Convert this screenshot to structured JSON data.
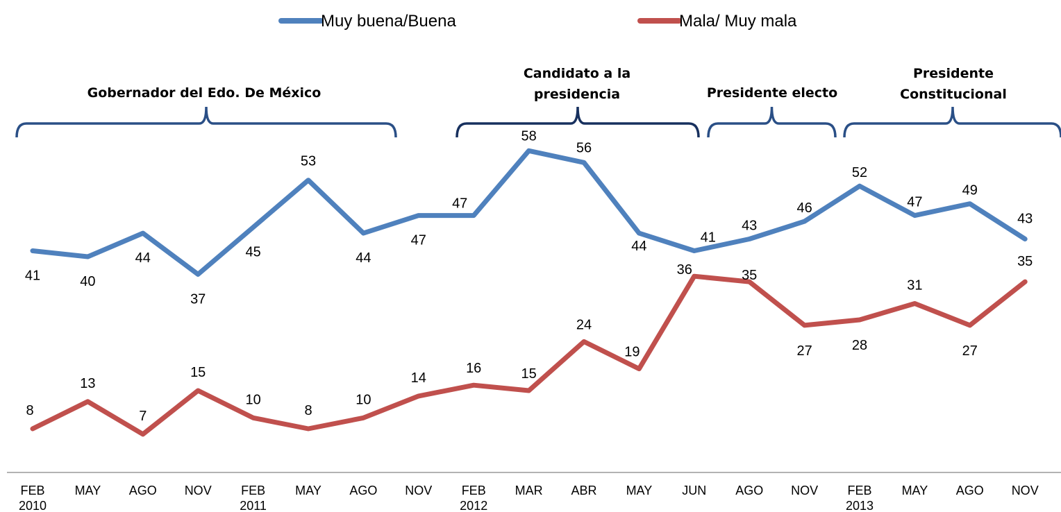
{
  "chart_data": {
    "type": "line",
    "categories": [
      [
        "FEB",
        "2010"
      ],
      [
        "MAY",
        ""
      ],
      [
        "AGO",
        ""
      ],
      [
        "NOV",
        ""
      ],
      [
        "FEB",
        "2011"
      ],
      [
        "MAY",
        ""
      ],
      [
        "AGO",
        ""
      ],
      [
        "NOV",
        ""
      ],
      [
        "FEB",
        "2012"
      ],
      [
        "MAR",
        ""
      ],
      [
        "ABR",
        ""
      ],
      [
        "MAY",
        ""
      ],
      [
        "JUN",
        ""
      ],
      [
        "AGO",
        ""
      ],
      [
        "NOV",
        ""
      ],
      [
        "FEB",
        "2013"
      ],
      [
        "MAY",
        ""
      ],
      [
        "AGO",
        ""
      ],
      [
        "NOV",
        ""
      ]
    ],
    "series": [
      {
        "name": "Muy buena/Buena",
        "color": "#4F81BD",
        "values": [
          41,
          40,
          44,
          37,
          45,
          53,
          44,
          47,
          47,
          58,
          56,
          44,
          41,
          43,
          46,
          52,
          47,
          49,
          43
        ]
      },
      {
        "name": "Mala/ Muy mala",
        "color": "#C0504D",
        "values": [
          8,
          13,
          7,
          15,
          10,
          8,
          10,
          14,
          16,
          15,
          24,
          19,
          36,
          35,
          27,
          28,
          31,
          27,
          35
        ]
      }
    ],
    "periods": [
      {
        "lines": [
          "Gobernador del Edo. De México"
        ],
        "start": 0,
        "end": 6.6
      },
      {
        "lines": [
          "Candidato a la",
          "presidencia"
        ],
        "start": 7.4,
        "end": 12
      },
      {
        "lines": [
          "Presidente electo"
        ],
        "start": 12.2,
        "end": 14.5
      },
      {
        "lines": [
          "Presidente",
          "Constitucional"
        ],
        "start": 14.7,
        "end": 18.6
      }
    ],
    "legend_position": "top-center",
    "grid": false
  }
}
